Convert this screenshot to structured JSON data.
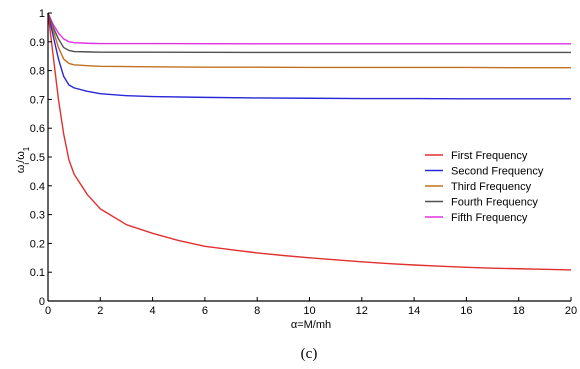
{
  "chart_data": {
    "type": "line",
    "xlabel": "α=M/mh",
    "ylabel": "ω_i/ω_1",
    "ylabel_main": "ω",
    "ylabel_sub_i": "i",
    "ylabel_div": "/ω",
    "ylabel_sub_1": "1",
    "xlim": [
      0,
      20
    ],
    "ylim": [
      0,
      1
    ],
    "xticks": [
      "0",
      "2",
      "4",
      "6",
      "8",
      "10",
      "12",
      "14",
      "16",
      "18",
      "20"
    ],
    "yticks": [
      "0",
      "0.1",
      "0.2",
      "0.3",
      "0.4",
      "0.5",
      "0.6",
      "0.7",
      "0.8",
      "0.9",
      "1"
    ],
    "legend_position": "right",
    "grid": false,
    "series": [
      {
        "name": "First Frequency",
        "color": "#e03030",
        "x": [
          0,
          0.2,
          0.4,
          0.6,
          0.8,
          1,
          1.5,
          2,
          3,
          4,
          5,
          6,
          7,
          8,
          9,
          10,
          11,
          12,
          13,
          14,
          15,
          16,
          17,
          18,
          19,
          20
        ],
        "y": [
          1.0,
          0.85,
          0.7,
          0.58,
          0.49,
          0.44,
          0.37,
          0.32,
          0.265,
          0.235,
          0.21,
          0.19,
          0.178,
          0.167,
          0.158,
          0.15,
          0.143,
          0.136,
          0.13,
          0.125,
          0.121,
          0.117,
          0.114,
          0.112,
          0.11,
          0.108
        ]
      },
      {
        "name": "Second Frequency",
        "color": "#2828d8",
        "x": [
          0,
          0.2,
          0.4,
          0.6,
          0.8,
          1,
          1.5,
          2,
          3,
          4,
          6,
          8,
          10,
          12,
          14,
          16,
          18,
          20
        ],
        "y": [
          1.0,
          0.92,
          0.84,
          0.78,
          0.75,
          0.74,
          0.728,
          0.72,
          0.713,
          0.71,
          0.707,
          0.705,
          0.704,
          0.703,
          0.703,
          0.702,
          0.702,
          0.702
        ]
      },
      {
        "name": "Third Frequency",
        "color": "#c0701e",
        "x": [
          0,
          0.2,
          0.4,
          0.6,
          0.8,
          1,
          1.5,
          2,
          4,
          6,
          8,
          10,
          12,
          14,
          16,
          18,
          20
        ],
        "y": [
          1.0,
          0.94,
          0.88,
          0.84,
          0.825,
          0.82,
          0.817,
          0.815,
          0.813,
          0.812,
          0.812,
          0.811,
          0.811,
          0.811,
          0.811,
          0.81,
          0.81
        ]
      },
      {
        "name": "Fourth Frequency",
        "color": "#505050",
        "x": [
          0,
          0.2,
          0.4,
          0.6,
          0.8,
          1,
          1.5,
          2,
          4,
          8,
          12,
          16,
          20
        ],
        "y": [
          1.0,
          0.95,
          0.91,
          0.88,
          0.87,
          0.866,
          0.865,
          0.864,
          0.864,
          0.863,
          0.863,
          0.863,
          0.863
        ]
      },
      {
        "name": "Fifth Frequency",
        "color": "#e030e0",
        "x": [
          0,
          0.2,
          0.4,
          0.6,
          0.8,
          1,
          1.5,
          2,
          4,
          8,
          12,
          16,
          20
        ],
        "y": [
          1.0,
          0.96,
          0.93,
          0.91,
          0.9,
          0.897,
          0.895,
          0.894,
          0.894,
          0.893,
          0.893,
          0.893,
          0.893
        ]
      }
    ]
  },
  "panel_label": "(c)"
}
